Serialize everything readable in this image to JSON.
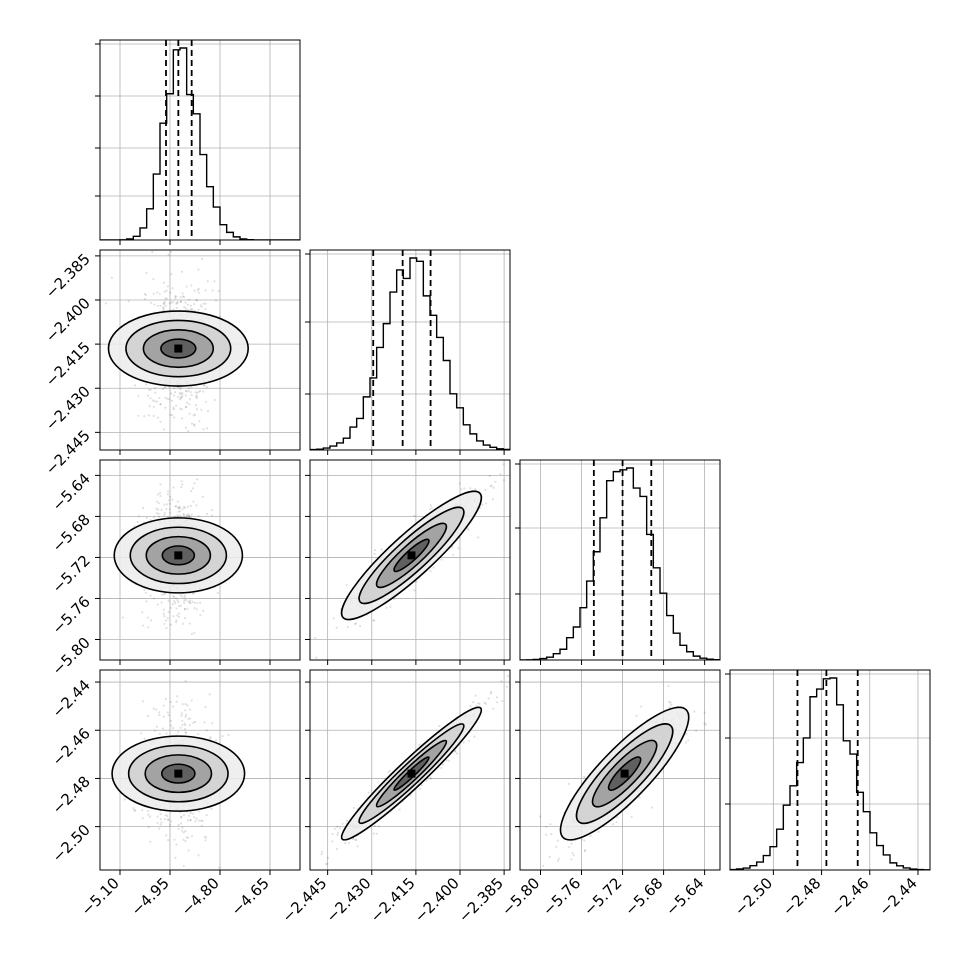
{
  "chart_data": {
    "type": "scatter",
    "description_kind": "corner plot",
    "parameters": [
      {
        "range": [
          -5.16,
          -4.56
        ],
        "ticks": [
          -5.1,
          -4.95,
          -4.8,
          -4.65
        ],
        "tick_labels": [
          "−5.10",
          "−4.95",
          "−4.80",
          "−4.65"
        ],
        "mean": -4.925,
        "sd": 0.045,
        "quantiles": [
          -4.962,
          -4.925,
          -4.885
        ],
        "hist_ymax": 1.0,
        "hist_yticks": [
          0.22,
          0.46,
          0.72,
          0.98
        ]
      },
      {
        "range": [
          -2.451,
          -2.383
        ],
        "ticks": [
          -2.445,
          -2.43,
          -2.415,
          -2.4,
          -2.385
        ],
        "tick_labels": [
          "−2.445",
          "−2.430",
          "−2.415",
          "−2.400",
          "−2.385"
        ],
        "mean": -2.4165,
        "sd": 0.0095,
        "quantiles": [
          -2.4295,
          -2.4195,
          -2.41
        ],
        "hist_ymax": 1.0,
        "hist_yticks": [
          0.28,
          0.64,
          0.98
        ]
      },
      {
        "range": [
          -5.82,
          -5.625
        ],
        "ticks": [
          -5.8,
          -5.76,
          -5.72,
          -5.68,
          -5.64
        ],
        "tick_labels": [
          "−5.80",
          "−5.76",
          "−5.72",
          "−5.68",
          "−5.64"
        ],
        "mean": -5.718,
        "sd": 0.025,
        "quantiles": [
          -5.748,
          -5.72,
          -5.692
        ],
        "hist_ymax": 1.0,
        "hist_yticks": [
          0.33,
          0.66,
          0.98
        ]
      },
      {
        "range": [
          -2.518,
          -2.435
        ],
        "ticks": [
          -2.5,
          -2.48,
          -2.46,
          -2.44
        ],
        "tick_labels": [
          "−2.50",
          "−2.48",
          "−2.46",
          "−2.44"
        ],
        "mean": -2.478,
        "sd": 0.011,
        "quantiles": [
          -2.49,
          -2.478,
          -2.465
        ],
        "hist_ymax": 1.0,
        "hist_yticks": [
          0.33,
          0.66,
          0.98
        ]
      }
    ],
    "correlations": [
      [
        1,
        0,
        0,
        0
      ],
      [
        0,
        1,
        0.9,
        0.96
      ],
      [
        0,
        0.9,
        1,
        0.85
      ],
      [
        0,
        0.96,
        0.85,
        1
      ]
    ],
    "contour_levels_sigma": [
      0.5,
      1.0,
      1.5,
      2.0
    ],
    "grid": true
  }
}
